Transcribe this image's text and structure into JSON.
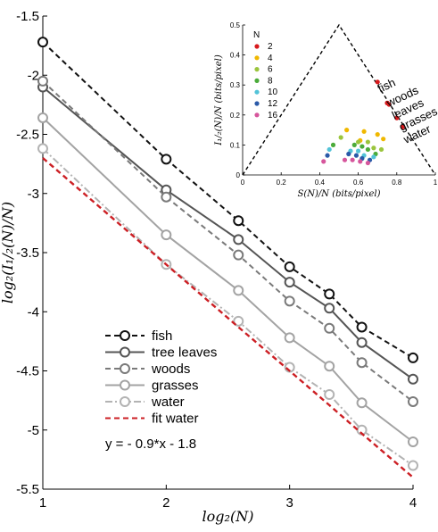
{
  "chart_data": [
    {
      "type": "line",
      "xlabel": "log₂(N)",
      "ylabel": "log₂(I₁/₂(N)/N)",
      "xlim": [
        1,
        4
      ],
      "ylim": [
        -5.5,
        -1.5
      ],
      "xticks": [
        "1",
        "2",
        "3",
        "4"
      ],
      "yticks": [
        "-1.5",
        "-2",
        "-2.5",
        "-3",
        "-3.5",
        "-4",
        "-4.5",
        "-5",
        "-5.5"
      ],
      "grid": false,
      "legend_placement": "lower-left",
      "x": [
        1,
        2,
        2.585,
        3,
        3.322,
        3.585,
        4
      ],
      "series": [
        {
          "name": "fish",
          "color": "#111111",
          "dash": "dashed",
          "marker": "circle",
          "values": [
            -1.72,
            -2.71,
            -3.23,
            -3.62,
            -3.85,
            -4.13,
            -4.39
          ]
        },
        {
          "name": "tree leaves",
          "color": "#555555",
          "dash": "solid",
          "marker": "circle",
          "values": [
            -2.1,
            -2.97,
            -3.39,
            -3.75,
            -3.97,
            -4.26,
            -4.57
          ]
        },
        {
          "name": "woods",
          "color": "#7a7a7a",
          "dash": "dashed",
          "marker": "circle",
          "values": [
            -2.05,
            -3.03,
            -3.52,
            -3.91,
            -4.14,
            -4.43,
            -4.76
          ]
        },
        {
          "name": "grasses",
          "color": "#a3a3a3",
          "dash": "solid",
          "marker": "circle",
          "values": [
            -2.36,
            -3.35,
            -3.82,
            -4.22,
            -4.46,
            -4.77,
            -5.1
          ]
        },
        {
          "name": "water",
          "color": "#b3b3b3",
          "dash": "dashdot",
          "marker": "circle",
          "values": [
            -2.62,
            -3.6,
            -4.08,
            -4.47,
            -4.7,
            -5.0,
            -5.3
          ]
        },
        {
          "name": "fit water",
          "color": "#cc1f24",
          "dash": "dashed",
          "marker": "none",
          "values": [
            -2.7,
            -3.6,
            -4.13,
            -4.5,
            -4.79,
            -5.03,
            -5.4
          ]
        }
      ],
      "annotations": [
        "y = - 0.9*x - 1.8"
      ]
    },
    {
      "type": "scatter",
      "xlabel": "S(N)/N (bits/pixel)",
      "ylabel": "I₁/₂(N)/N (bits/pixel)",
      "xlim": [
        0,
        1
      ],
      "ylim": [
        0,
        0.5
      ],
      "xticks": [
        "0",
        "0.2",
        "0.4",
        "0.6",
        "0.8",
        "1"
      ],
      "yticks": [
        "0",
        "0.1",
        "0.2",
        "0.3",
        "0.4",
        "0.5"
      ],
      "legend_title": "N",
      "legend_placement": "top-left",
      "annotations": [
        "fish",
        "woods",
        "leaves",
        "grasses",
        "water"
      ],
      "series": [
        {
          "name": "2",
          "color": "#d7191c",
          "points": [
            [
              0.7,
              0.31
            ],
            [
              0.75,
              0.24
            ],
            [
              0.76,
              0.235
            ],
            [
              0.8,
              0.19
            ],
            [
              0.83,
              0.16
            ]
          ]
        },
        {
          "name": "4",
          "color": "#f0b800",
          "points": [
            [
              0.54,
              0.15
            ],
            [
              0.63,
              0.145
            ],
            [
              0.7,
              0.135
            ],
            [
              0.73,
              0.12
            ],
            [
              0.61,
              0.115
            ]
          ]
        },
        {
          "name": "6",
          "color": "#9bc53d",
          "points": [
            [
              0.51,
              0.125
            ],
            [
              0.6,
              0.11
            ],
            [
              0.65,
              0.11
            ],
            [
              0.68,
              0.09
            ],
            [
              0.72,
              0.085
            ]
          ]
        },
        {
          "name": "8",
          "color": "#4bab3a",
          "points": [
            [
              0.47,
              0.1
            ],
            [
              0.58,
              0.1
            ],
            [
              0.62,
              0.095
            ],
            [
              0.65,
              0.085
            ],
            [
              0.69,
              0.07
            ]
          ]
        },
        {
          "name": "10",
          "color": "#53c3d8",
          "points": [
            [
              0.45,
              0.085
            ],
            [
              0.56,
              0.08
            ],
            [
              0.6,
              0.08
            ],
            [
              0.63,
              0.065
            ],
            [
              0.68,
              0.06
            ]
          ]
        },
        {
          "name": "12",
          "color": "#2b5aa8",
          "points": [
            [
              0.44,
              0.065
            ],
            [
              0.55,
              0.07
            ],
            [
              0.59,
              0.065
            ],
            [
              0.62,
              0.055
            ],
            [
              0.66,
              0.05
            ]
          ]
        },
        {
          "name": "16",
          "color": "#d6569c",
          "points": [
            [
              0.42,
              0.045
            ],
            [
              0.53,
              0.05
            ],
            [
              0.57,
              0.05
            ],
            [
              0.61,
              0.045
            ],
            [
              0.65,
              0.04
            ]
          ]
        }
      ]
    }
  ]
}
